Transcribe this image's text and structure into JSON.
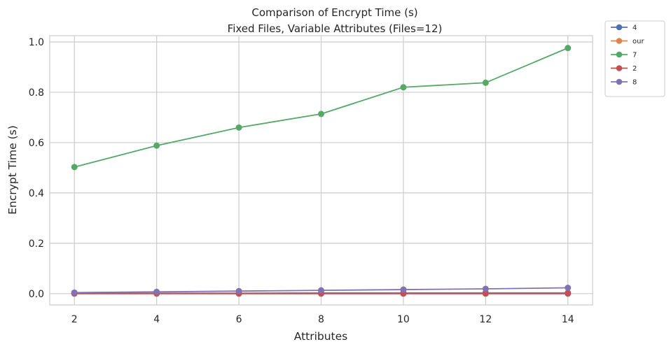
{
  "chart_data": {
    "type": "line",
    "title": "Comparison of Encrypt Time (s)",
    "subtitle": "Fixed Files, Variable Attributes (Files=12)",
    "xlabel": "Attributes",
    "ylabel": "Encrypt Time (s)",
    "x": [
      2,
      4,
      6,
      8,
      10,
      12,
      14
    ],
    "x_ticks": [
      "2",
      "4",
      "6",
      "8",
      "10",
      "12",
      "14"
    ],
    "y_ticks": [
      "0.0",
      "0.2",
      "0.4",
      "0.6",
      "0.8",
      "1.0"
    ],
    "xlim": [
      1.4,
      14.6
    ],
    "ylim": [
      -0.045,
      1.025
    ],
    "grid": true,
    "legend_placement": "outside-top-right",
    "series": [
      {
        "name": "4",
        "color": "#4c72b0",
        "values": [
          0.002,
          0.002,
          0.002,
          0.003,
          0.003,
          0.003,
          0.003
        ]
      },
      {
        "name": "our",
        "color": "#dd8452",
        "values": [
          0.001,
          0.001,
          0.001,
          0.001,
          0.001,
          0.001,
          0.001
        ]
      },
      {
        "name": "7",
        "color": "#55a868",
        "values": [
          0.503,
          0.588,
          0.66,
          0.714,
          0.82,
          0.838,
          0.976
        ]
      },
      {
        "name": "2",
        "color": "#c44e52",
        "values": [
          0.0,
          0.0,
          0.0,
          0.0,
          0.0,
          0.0,
          0.0
        ]
      },
      {
        "name": "8",
        "color": "#8172b3",
        "values": [
          0.004,
          0.007,
          0.01,
          0.013,
          0.016,
          0.019,
          0.023
        ]
      }
    ]
  }
}
